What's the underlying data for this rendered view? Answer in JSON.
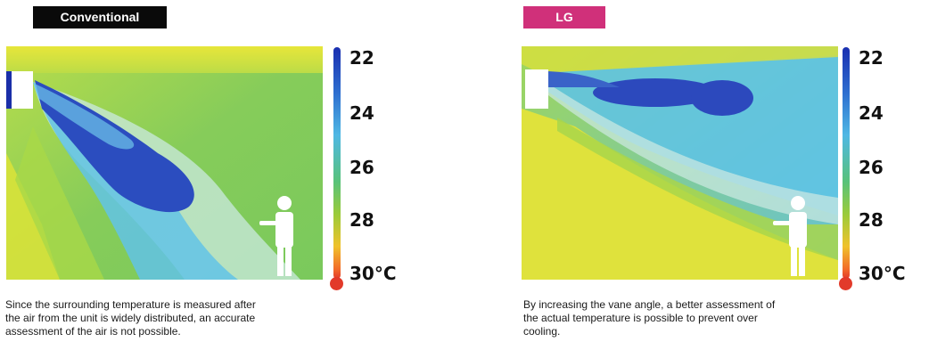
{
  "panels": [
    {
      "badge": "Conventional",
      "badge_color": "#0a0a0a",
      "scale_labels": [
        "22",
        "24",
        "26",
        "28",
        "30°C"
      ],
      "caption_lines": [
        "Since the surrounding temperature is measured after",
        "the air from the unit is widely distributed, an accurate",
        "assessment of the air is not possible."
      ]
    },
    {
      "badge": "LG",
      "badge_color": "#d0307a",
      "scale_labels": [
        "22",
        "24",
        "26",
        "28",
        "30°C"
      ],
      "caption_lines": [
        "By increasing the vane angle, a better assessment of",
        "the actual temperature is possible to prevent over",
        "cooling."
      ]
    }
  ],
  "colors": {
    "cold": "#1f3fb8",
    "cool": "#56c1e6",
    "mild": "#7cc957",
    "warm": "#d9e03c",
    "hot": "#e23a2a"
  }
}
